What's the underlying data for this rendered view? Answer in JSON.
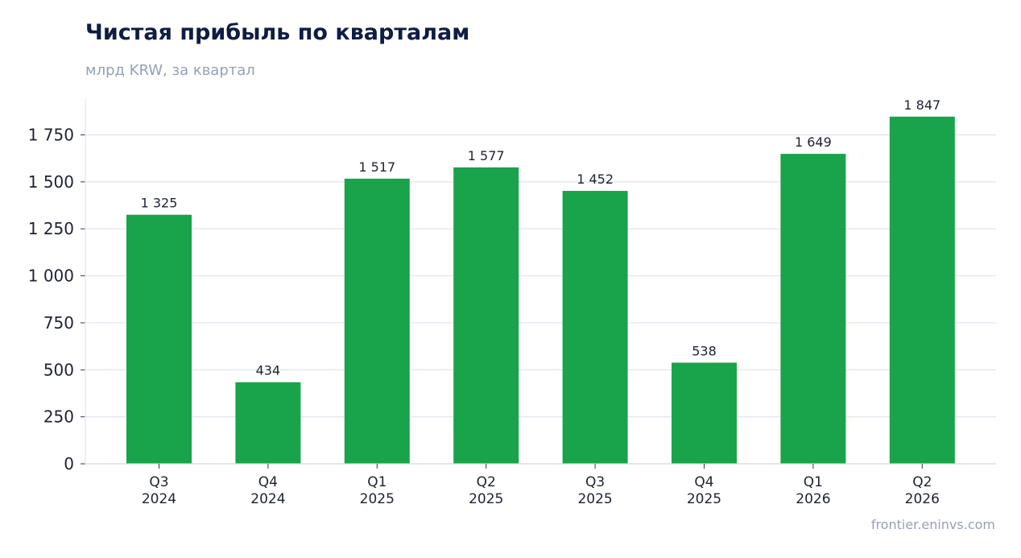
{
  "header": {
    "title": "Чистая прибыль по кварталам",
    "subtitle": "млрд KRW, за квартал"
  },
  "footer": {
    "source": "frontier.eninvs.com"
  },
  "colors": {
    "bar": "#19a34a",
    "title": "#0f1d45",
    "muted": "#93a1b8",
    "grid": "#dfe4ee"
  },
  "chart_data": {
    "type": "bar",
    "categories": [
      [
        "Q3",
        "2024"
      ],
      [
        "Q4",
        "2024"
      ],
      [
        "Q1",
        "2025"
      ],
      [
        "Q2",
        "2025"
      ],
      [
        "Q3",
        "2025"
      ],
      [
        "Q4",
        "2025"
      ],
      [
        "Q1",
        "2026"
      ],
      [
        "Q2",
        "2026"
      ]
    ],
    "values": [
      1325,
      434,
      1517,
      1577,
      1452,
      538,
      1649,
      1847
    ],
    "value_labels": [
      "1 325",
      "434",
      "1 517",
      "1 577",
      "1 452",
      "538",
      "1 649",
      "1 847"
    ],
    "title": "Чистая прибыль по кварталам",
    "subtitle": "млрд KRW, за квартал",
    "xlabel": "",
    "ylabel": "",
    "ylim": [
      0,
      1940
    ],
    "yticks": [
      0,
      250,
      500,
      750,
      1000,
      1250,
      1500,
      1750
    ],
    "ytick_labels": [
      "0",
      "250",
      "500",
      "750",
      "1 000",
      "1 250",
      "1 500",
      "1 750"
    ],
    "grid": true,
    "legend": "none"
  }
}
